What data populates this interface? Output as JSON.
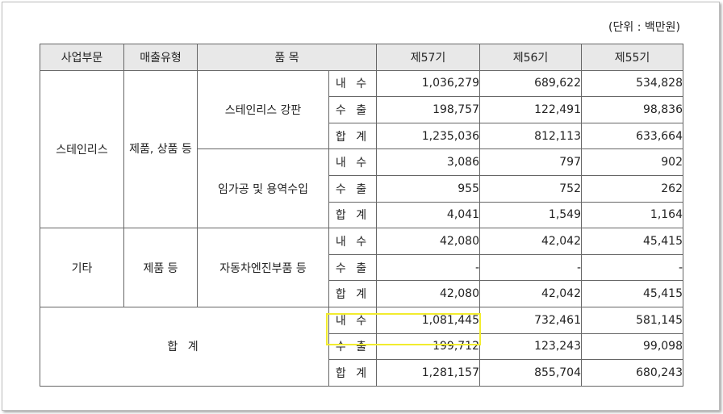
{
  "unit_label": "(단위 : 백만원)",
  "headers": {
    "division": "사업부문",
    "sales_type": "매출유형",
    "item": "품 목",
    "fy57": "제57기",
    "fy56": "제56기",
    "fy55": "제55기"
  },
  "labels": {
    "domestic": "내 수",
    "export": "수 출",
    "total": "합 계"
  },
  "stainless": {
    "division": "스테인리스",
    "sales_type": "제품, 상품 등",
    "steel_plate": {
      "name": "스테인리스 강판",
      "domestic": [
        "1,036,279",
        "689,622",
        "534,828"
      ],
      "export": [
        "198,757",
        "122,491",
        "98,836"
      ],
      "total": [
        "1,235,036",
        "812,113",
        "633,664"
      ]
    },
    "processing": {
      "name": "임가공 및 용역수입",
      "domestic": [
        "3,086",
        "797",
        "902"
      ],
      "export": [
        "955",
        "752",
        "262"
      ],
      "total": [
        "4,041",
        "1,549",
        "1,164"
      ]
    }
  },
  "other": {
    "division": "기타",
    "sales_type": "제품 등",
    "auto_parts": {
      "name": "자동차엔진부품 등",
      "domestic": [
        "42,080",
        "42,042",
        "45,415"
      ],
      "export": [
        "-",
        "-",
        "-"
      ],
      "total": [
        "42,080",
        "42,042",
        "45,415"
      ]
    }
  },
  "grand_total": {
    "label": "합 계",
    "domestic": [
      "1,081,445",
      "732,461",
      "581,145"
    ],
    "export": [
      "199,712",
      "123,243",
      "99,098"
    ],
    "total": [
      "1,281,157",
      "855,704",
      "680,243"
    ]
  },
  "highlight_color": "#f2ec2e"
}
